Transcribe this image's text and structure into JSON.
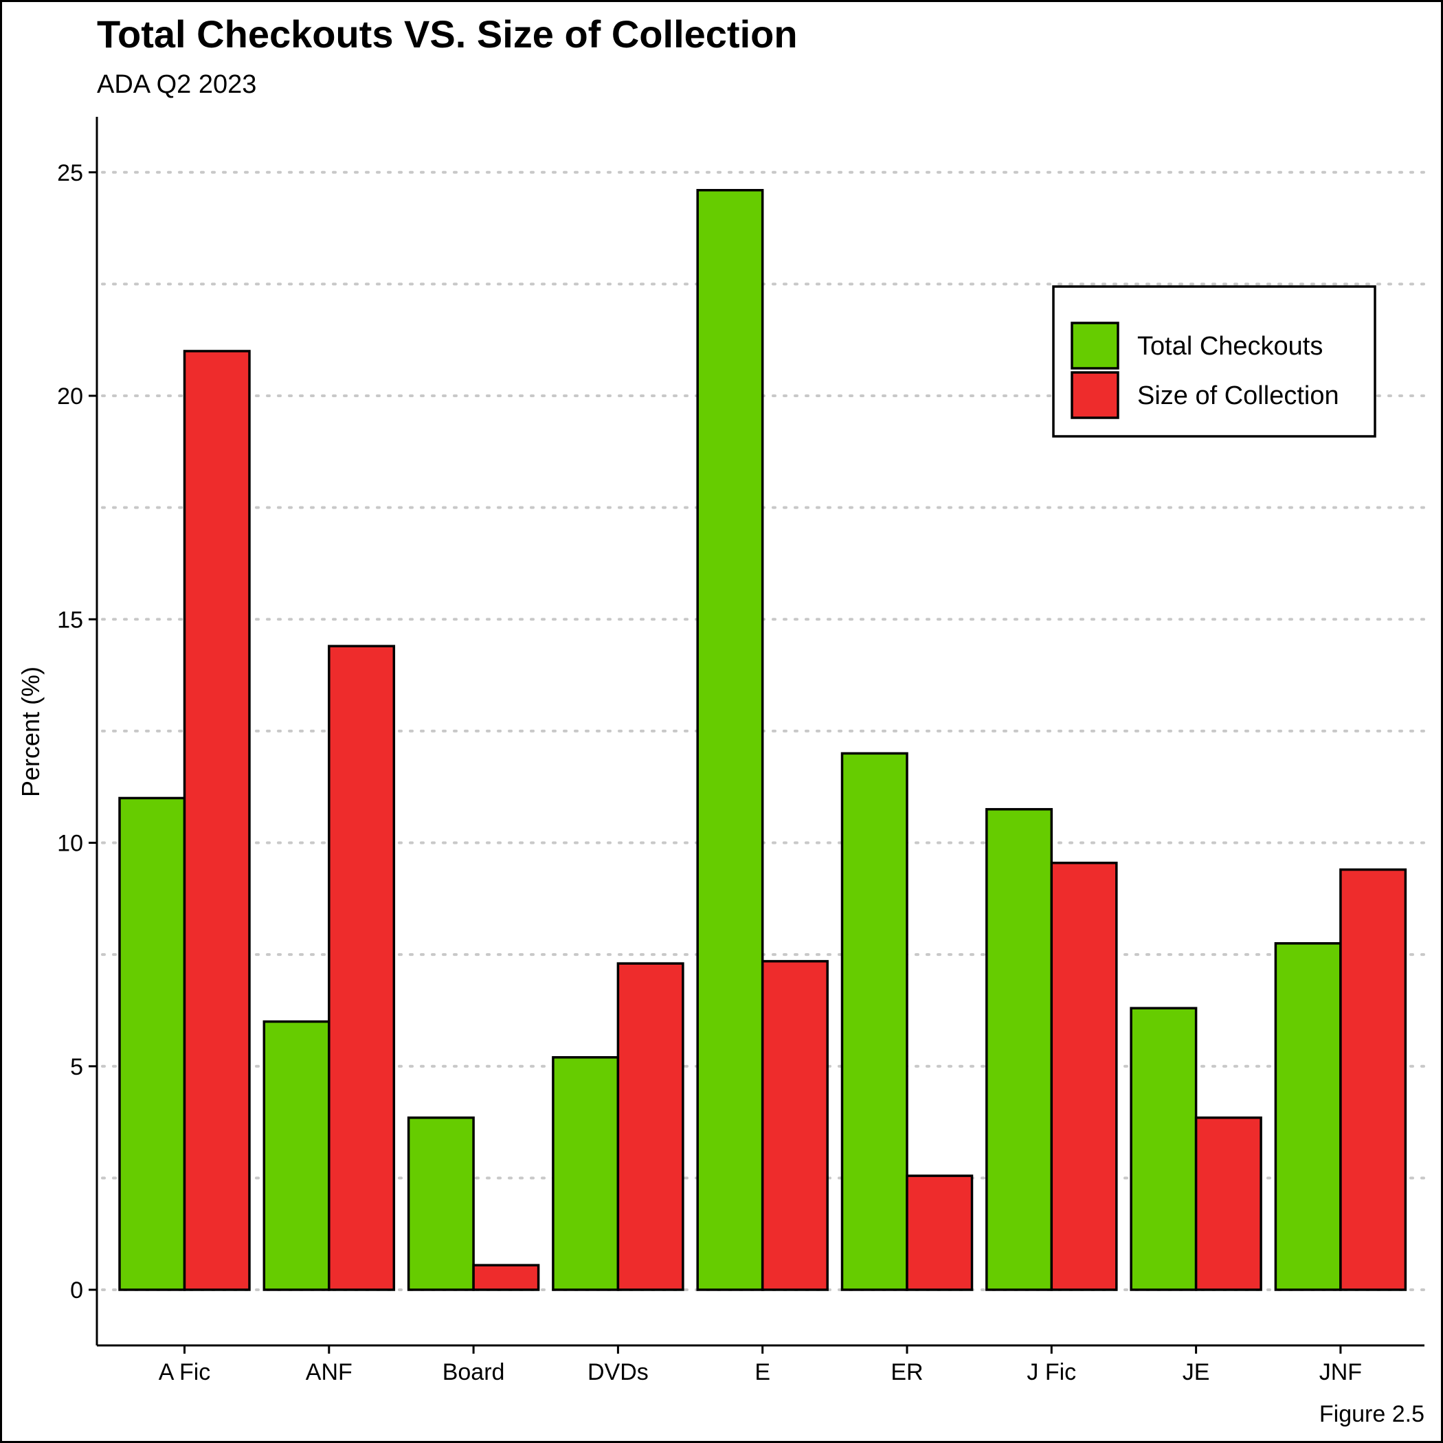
{
  "chart_data": {
    "type": "bar",
    "title": "Total Checkouts VS. Size of Collection",
    "subtitle": "ADA Q2 2023",
    "xlabel": "",
    "ylabel": "Percent (%)",
    "caption": "Figure 2.5",
    "categories": [
      "A Fic",
      "ANF",
      "Board",
      "DVDs",
      "E",
      "ER",
      "J Fic",
      "JE",
      "JNF"
    ],
    "series": [
      {
        "name": "Total Checkouts",
        "color": "#66cc00",
        "values": [
          11.0,
          6.0,
          3.85,
          5.2,
          24.6,
          12.0,
          10.75,
          6.3,
          7.75
        ]
      },
      {
        "name": "Size of Collection",
        "color": "#ee2c2c",
        "values": [
          21.0,
          14.4,
          0.55,
          7.3,
          7.35,
          2.55,
          9.55,
          3.85,
          9.4
        ]
      }
    ],
    "ylim": [
      -1.25,
      26.2
    ],
    "yticks": [
      "0",
      "5",
      "10",
      "15",
      "20",
      "25"
    ],
    "grid": "horizontal dotted",
    "legend_position": "top-right"
  }
}
